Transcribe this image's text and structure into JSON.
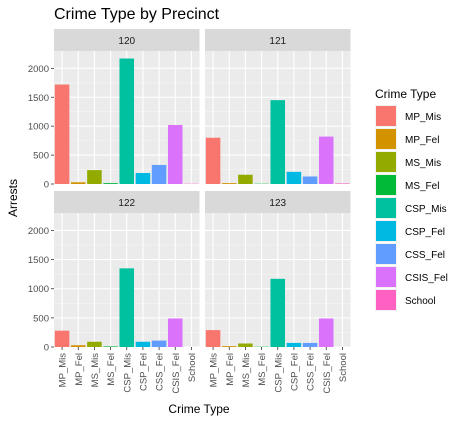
{
  "chart_data": {
    "type": "bar",
    "title": "Crime Type by Precinct",
    "xlabel": "Crime Type",
    "ylabel": "Arrests",
    "ylim": [
      0,
      2300
    ],
    "yticks": [
      0,
      500,
      1000,
      1500,
      2000
    ],
    "categories": [
      "MP_Mis",
      "MP_Fel",
      "MS_Mis",
      "MS_Fel",
      "CSP_Mis",
      "CSP_Fel",
      "CSS_Fel",
      "CSIS_Fel",
      "School"
    ],
    "colors": [
      "#F8766D",
      "#D39200",
      "#93AA00",
      "#00BA38",
      "#00C19F",
      "#00B9E3",
      "#619CFF",
      "#DB72FB",
      "#FF61C3"
    ],
    "legend": {
      "title": "Crime Type",
      "position": "right",
      "entries": [
        "MP_Mis",
        "MP_Fel",
        "MS_Mis",
        "MS_Fel",
        "CSP_Mis",
        "CSP_Fel",
        "CSS_Fel",
        "CSIS_Fel",
        "School"
      ]
    },
    "grid": true,
    "facets": [
      {
        "label": "120",
        "values": [
          1720,
          30,
          240,
          15,
          2170,
          190,
          330,
          1020,
          5
        ]
      },
      {
        "label": "121",
        "values": [
          800,
          15,
          160,
          5,
          1450,
          210,
          130,
          820,
          10
        ]
      },
      {
        "label": "122",
        "values": [
          280,
          30,
          90,
          10,
          1350,
          90,
          110,
          490,
          0
        ]
      },
      {
        "label": "123",
        "values": [
          290,
          15,
          60,
          5,
          1170,
          70,
          70,
          490,
          0
        ]
      }
    ]
  }
}
